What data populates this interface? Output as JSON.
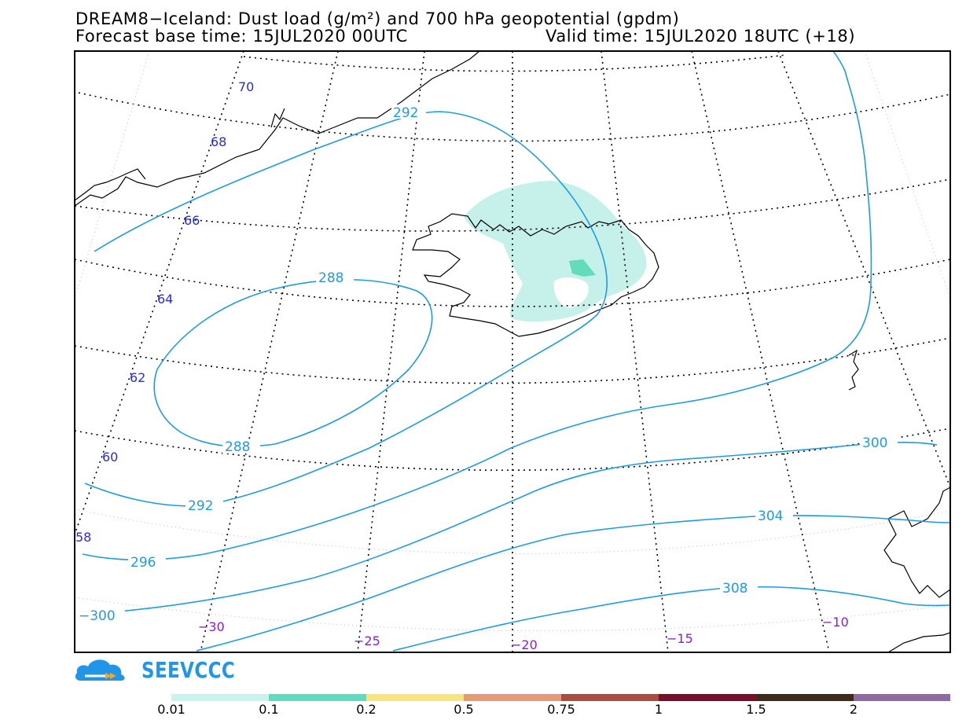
{
  "header": {
    "title_line1": "DREAM8−Iceland: Dust load (g/m²) and 700 hPa geopotential (gpdm)",
    "forecast_base": "Forecast base time: 15JUL2020 00UTC",
    "valid_time": "Valid time: 15JUL2020 18UTC (+18)"
  },
  "map": {
    "lat_labels": [
      "70",
      "68",
      "66",
      "64",
      "62",
      "60",
      "58"
    ],
    "lon_labels": [
      "−30",
      "−25",
      "−20",
      "−15",
      "−10"
    ],
    "isoline_labels": [
      "292",
      "288",
      "288",
      "292",
      "296",
      "−300",
      "300",
      "304",
      "308"
    ],
    "colors": {
      "isoline": "#1e9be6",
      "lat_label": "#2a2ae6",
      "lon_label": "#8c1ed0",
      "dust_low": "#c5f1ea",
      "dust_mid": "#63dcbe"
    }
  },
  "logo": {
    "text": "SEEVCCC",
    "icon": "cloud-logo-icon",
    "color": "#2196e8"
  },
  "colorbar": {
    "labels": [
      "0.01",
      "0.1",
      "0.2",
      "0.5",
      "0.75",
      "1",
      "1.5",
      "2"
    ],
    "colors": [
      "#c8f4ee",
      "#5fdcbf",
      "#f9e57f",
      "#e89b72",
      "#ab4d45",
      "#7a0f2c",
      "#3b2c1e",
      "#8f6aa5"
    ]
  }
}
